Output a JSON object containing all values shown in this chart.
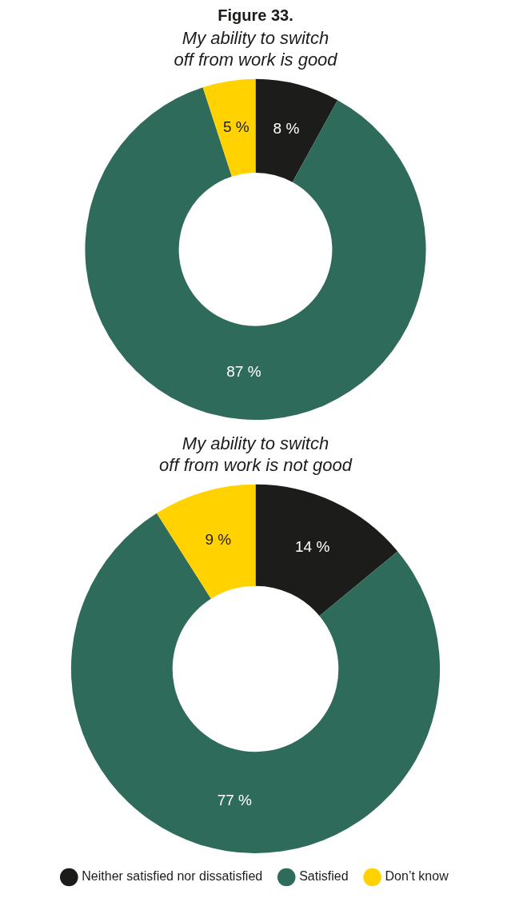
{
  "chart_data": [
    {
      "type": "donut",
      "title": "Figure 33.",
      "subtitle": "My ability to switch off from work is good",
      "categories": [
        null,
        null,
        null
      ],
      "values": [
        8,
        87,
        5
      ],
      "value_labels": [
        "8 %",
        "87 %",
        "5 %"
      ],
      "colors": [
        "#1c1c1a",
        "#2f6b5a",
        "#ffd200"
      ],
      "legend": false
    },
    {
      "type": "donut",
      "title": "My ability to switch off from work is not good",
      "categories": [
        "Neither satisfied nor dissatisfied",
        "Satisfied",
        "Don’t know"
      ],
      "values": [
        14,
        77,
        9
      ],
      "value_labels": [
        "14 %",
        "77 %",
        "9 %"
      ],
      "colors": [
        "#1c1c1a",
        "#2f6b5a",
        "#ffd200"
      ],
      "legend": "bottom"
    }
  ]
}
